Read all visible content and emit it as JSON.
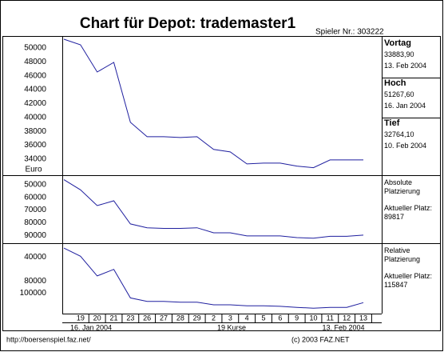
{
  "title": "Chart für Depot:  trademaster1",
  "player": "Spieler Nr.: 303222",
  "x_axis": {
    "categories": [
      null,
      "19",
      "20",
      "21",
      "23",
      "26",
      "27",
      "28",
      "29",
      "2",
      "3",
      "4",
      "5",
      "6",
      "9",
      "10",
      "11",
      "12",
      "13"
    ],
    "start": "16. Jan 2004",
    "count": "19 Kurse",
    "end": "13. Feb 2004"
  },
  "stats": [
    {
      "label": "Vortag",
      "value": "33883,90",
      "date": "13. Feb 2004"
    },
    {
      "label": "Hoch",
      "value": "51267,60",
      "date": "16. Jan 2004"
    },
    {
      "label": "Tief",
      "value": "32764,10",
      "date": "10. Feb 2004"
    }
  ],
  "chart_data": [
    {
      "type": "line",
      "color": "#1f1f9f",
      "y_label": "Euro",
      "values": [
        51268,
        50460,
        46550,
        47930,
        39300,
        37230,
        37230,
        37110,
        37230,
        35390,
        35040,
        33310,
        33430,
        33430,
        33000,
        32764,
        33880,
        33880,
        33884
      ],
      "ylim": [
        31800,
        51500
      ],
      "yticks": [
        34000,
        36000,
        38000,
        40000,
        42000,
        44000,
        46000,
        48000,
        50000
      ]
    },
    {
      "type": "line",
      "color": "#1f1f9f",
      "side_title": "Absolute Platzierung",
      "side_label": "Aktueller Platz:",
      "side_value": "89817",
      "values": [
        46000,
        54000,
        66500,
        62700,
        81000,
        84000,
        84500,
        84500,
        84000,
        88000,
        88000,
        90500,
        90500,
        90500,
        91800,
        92300,
        90800,
        90800,
        89817
      ],
      "ylim": [
        95600,
        43700
      ],
      "yticks": [
        50000,
        60000,
        70000,
        80000,
        90000
      ]
    },
    {
      "type": "line",
      "color": "#1f1f9f",
      "side_title": "Relative Platzierung",
      "side_label": "Aktueller Platz:",
      "side_value": "115847",
      "values": [
        25000,
        38600,
        71300,
        60400,
        108000,
        113700,
        113700,
        115000,
        115000,
        119500,
        119500,
        121000,
        121000,
        122000,
        123700,
        125000,
        123700,
        123700,
        115847
      ],
      "ylim": [
        134100,
        19500
      ],
      "yticks": [
        40000,
        80000,
        100000
      ]
    }
  ],
  "footer": {
    "url": "http://boersenspiel.faz.net/",
    "copyright": "(c) 2003 FAZ.NET"
  }
}
